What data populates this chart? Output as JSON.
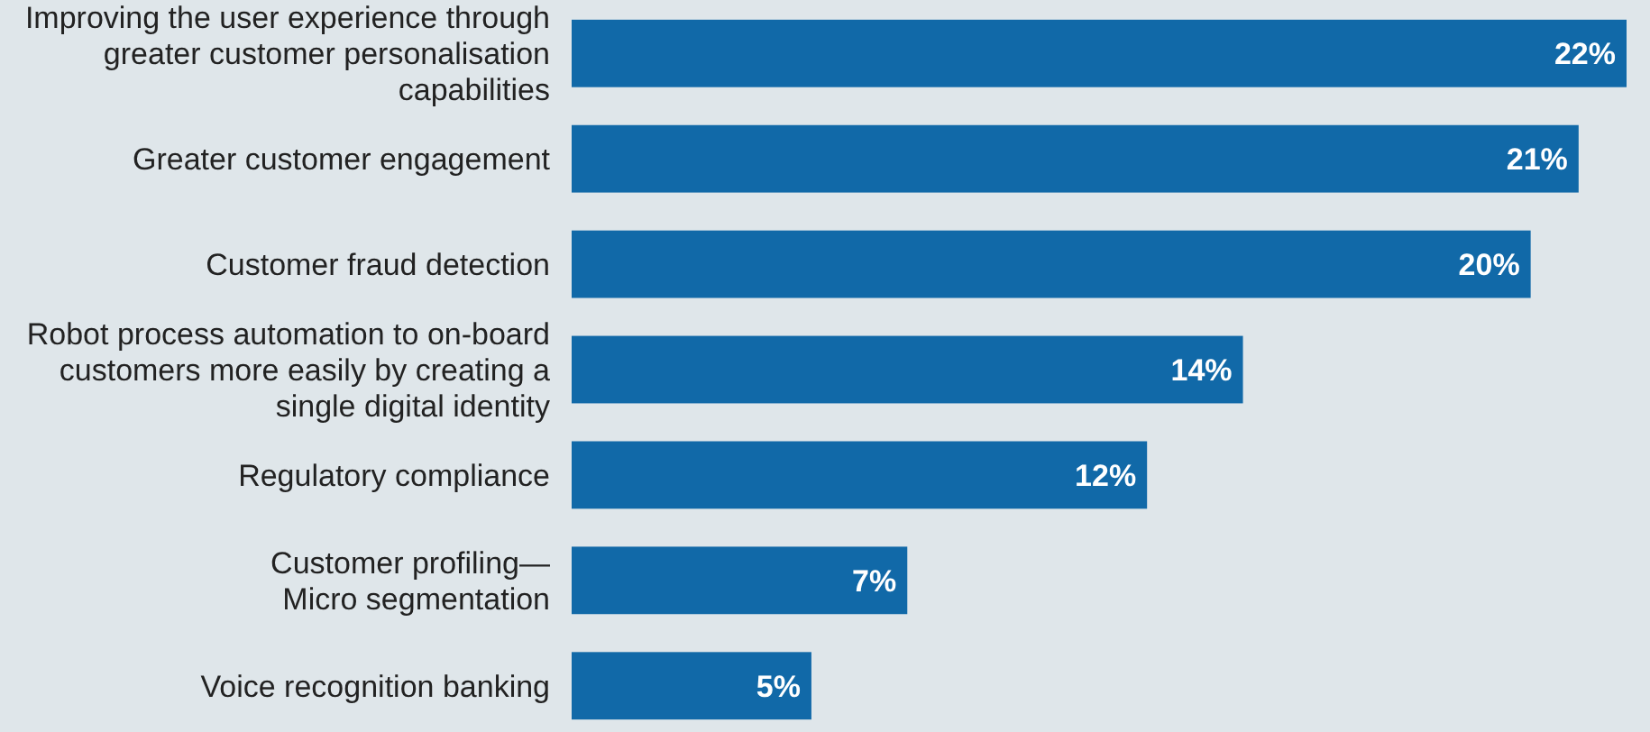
{
  "chart_data": {
    "type": "bar",
    "orientation": "horizontal",
    "categories": [
      "Improving the user experience through greater customer personalisation capabilities",
      "Greater customer engagement",
      "Customer fraud detection",
      "Robot process automation to on-board customers more easily by creating a single digital identity",
      "Regulatory compliance",
      "Customer profiling—Micro segmentation",
      "Voice recognition banking"
    ],
    "values": [
      22,
      21,
      20,
      14,
      12,
      7,
      5
    ],
    "value_labels": [
      "22%",
      "21%",
      "20%",
      "14%",
      "12%",
      "7%",
      "5%"
    ],
    "color": "#1169a8"
  }
}
